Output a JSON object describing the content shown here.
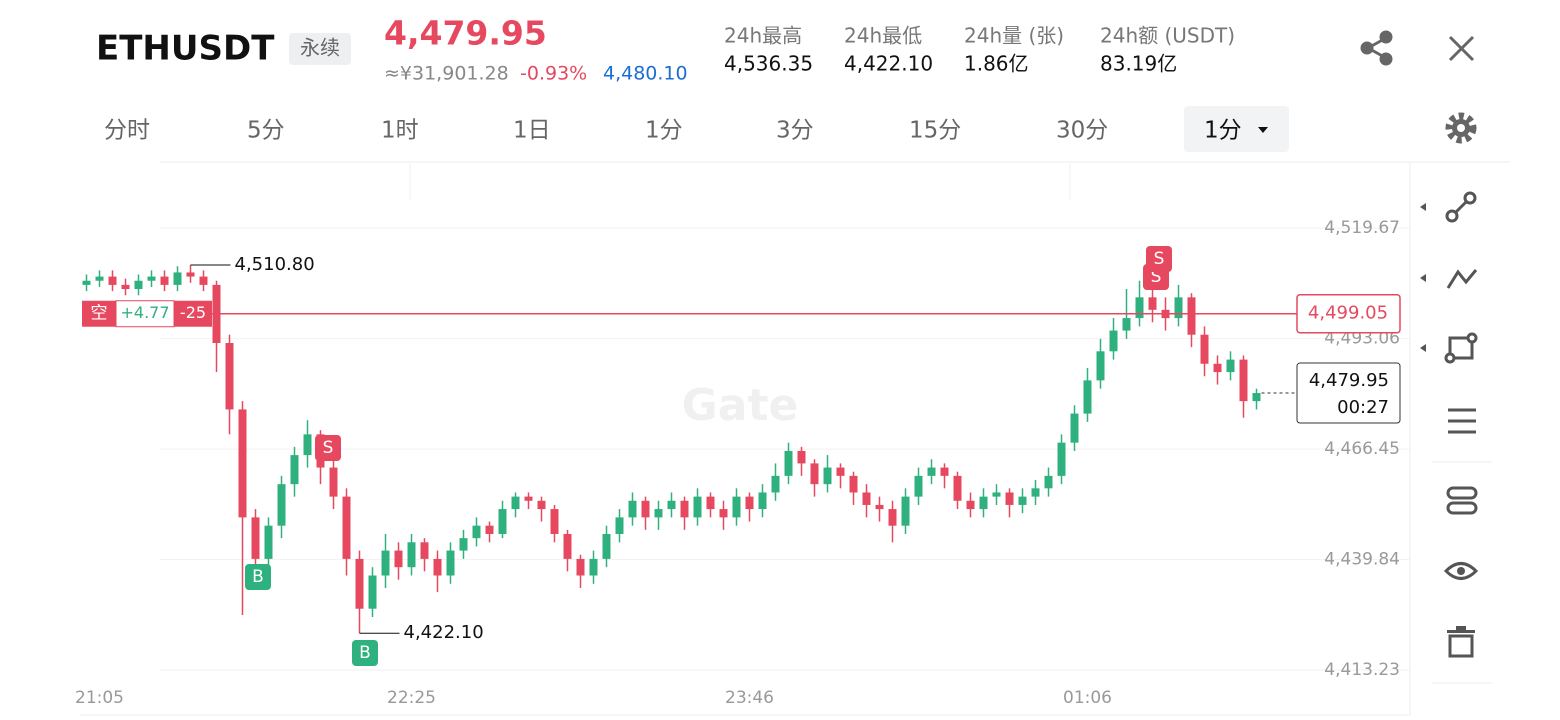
{
  "header": {
    "symbol": "ETHUSDT",
    "tag": "永续",
    "price": "4,479.95",
    "cny": "≈¥31,901.28",
    "change": "-0.93%",
    "mark_price": "4,480.10",
    "stats": [
      {
        "label": "24h最高",
        "value": "4,536.35"
      },
      {
        "label": "24h最低",
        "value": "4,422.10"
      },
      {
        "label": "24h量 (张)",
        "value": "1.86亿"
      },
      {
        "label": "24h额 (USDT)",
        "value": "83.19亿"
      }
    ]
  },
  "tabs": [
    "分时",
    "5分",
    "1时",
    "1日",
    "1分",
    "3分",
    "15分",
    "30分"
  ],
  "active_tab": "1分",
  "chart_data": {
    "type": "candlestick",
    "watermark": "Gate",
    "up_color": "#2fb07f",
    "down_color": "#e5485f",
    "categories": [
      null,
      "21:05",
      null,
      null,
      null,
      null,
      null,
      null,
      null,
      null,
      null,
      null,
      null,
      null,
      null,
      null,
      null,
      null,
      null,
      null,
      null,
      null,
      null,
      null,
      null,
      "22:25",
      null,
      null,
      null,
      null,
      null,
      null,
      null,
      null,
      null,
      null,
      null,
      null,
      null,
      null,
      null,
      null,
      null,
      null,
      null,
      null,
      null,
      null,
      null,
      null,
      null,
      "23:46",
      null,
      null,
      null,
      null,
      null,
      null,
      null,
      null,
      null,
      null,
      null,
      null,
      null,
      null,
      null,
      null,
      null,
      null,
      null,
      null,
      null,
      null,
      null,
      null,
      null,
      "01:06",
      null,
      null,
      null,
      null,
      null,
      null,
      null,
      null,
      null,
      null,
      null,
      null,
      null,
      null
    ],
    "candles": [
      [
        4506,
        4508.5,
        4504.5,
        4507
      ],
      [
        4507,
        4509.5,
        4505.5,
        4508
      ],
      [
        4508,
        4509.5,
        4504.5,
        4506
      ],
      [
        4506,
        4507.5,
        4503.5,
        4505
      ],
      [
        4505,
        4508.5,
        4503.5,
        4507
      ],
      [
        4507,
        4509.5,
        4505.5,
        4508
      ],
      [
        4508,
        4509.5,
        4504.5,
        4506
      ],
      [
        4506,
        4510.5,
        4504.5,
        4509
      ],
      [
        4509,
        4510.8,
        4506.5,
        4508
      ],
      [
        4508,
        4509.5,
        4504.5,
        4506
      ],
      [
        4506,
        4507,
        4485,
        4492
      ],
      [
        4492,
        4494,
        4470,
        4476
      ],
      [
        4476,
        4478,
        4426.5,
        4450
      ],
      [
        4450,
        4452,
        4434,
        4440
      ],
      [
        4440,
        4450,
        4436,
        4448
      ],
      [
        4448,
        4460,
        4445,
        4458
      ],
      [
        4458,
        4467,
        4455,
        4465
      ],
      [
        4465,
        4473.4,
        4462,
        4470
      ],
      [
        4470,
        4471,
        4458,
        4462
      ],
      [
        4462,
        4464,
        4452,
        4455
      ],
      [
        4455,
        4457,
        4436,
        4440
      ],
      [
        4440,
        4442,
        4422.1,
        4428
      ],
      [
        4428,
        4438,
        4426,
        4436
      ],
      [
        4436,
        4446,
        4433,
        4442
      ],
      [
        4442,
        4444,
        4435,
        4438
      ],
      [
        4438,
        4446,
        4436,
        4444
      ],
      [
        4444,
        4445,
        4437,
        4440
      ],
      [
        4440,
        4442,
        4432,
        4436
      ],
      [
        4436,
        4444,
        4434,
        4442
      ],
      [
        4442,
        4447,
        4440,
        4445
      ],
      [
        4445,
        4450,
        4443,
        4448
      ],
      [
        4448,
        4449,
        4444,
        4446
      ],
      [
        4446,
        4454,
        4445,
        4452
      ],
      [
        4452,
        4456,
        4450,
        4455
      ],
      [
        4455,
        4456,
        4452,
        4454
      ],
      [
        4454,
        4455,
        4449,
        4452
      ],
      [
        4452,
        4453,
        4444,
        4446
      ],
      [
        4446,
        4447,
        4437,
        4440
      ],
      [
        4440,
        4441,
        4433,
        4436
      ],
      [
        4436,
        4442,
        4434,
        4440
      ],
      [
        4440,
        4448,
        4438,
        4446
      ],
      [
        4446,
        4452,
        4444,
        4450
      ],
      [
        4450,
        4456,
        4448,
        4454
      ],
      [
        4454,
        4455,
        4447,
        4450
      ],
      [
        4450,
        4454,
        4447,
        4452
      ],
      [
        4452,
        4456,
        4450,
        4454
      ],
      [
        4454,
        4455,
        4447,
        4450
      ],
      [
        4450,
        4457,
        4448,
        4455
      ],
      [
        4455,
        4456,
        4450,
        4452
      ],
      [
        4452,
        4454,
        4447,
        4450
      ],
      [
        4450,
        4457,
        4448,
        4455
      ],
      [
        4455,
        4456,
        4449,
        4452
      ],
      [
        4452,
        4458,
        4450,
        4456
      ],
      [
        4456,
        4463,
        4454,
        4460
      ],
      [
        4460,
        4468,
        4458,
        4466
      ],
      [
        4466,
        4467,
        4460,
        4463
      ],
      [
        4463,
        4464,
        4455,
        4458
      ],
      [
        4458,
        4465,
        4456,
        4462
      ],
      [
        4462,
        4463,
        4457,
        4460
      ],
      [
        4460,
        4461,
        4453,
        4456
      ],
      [
        4456,
        4458,
        4450,
        4453
      ],
      [
        4453,
        4455,
        4449,
        4452
      ],
      [
        4452,
        4454,
        4444,
        4448
      ],
      [
        4448,
        4457,
        4446,
        4455
      ],
      [
        4455,
        4462,
        4453,
        4460
      ],
      [
        4460,
        4464,
        4458,
        4462
      ],
      [
        4462,
        4463,
        4457,
        4460
      ],
      [
        4460,
        4461,
        4452,
        4454
      ],
      [
        4454,
        4456,
        4450,
        4452
      ],
      [
        4452,
        4457,
        4450,
        4455
      ],
      [
        4455,
        4458,
        4453,
        4456
      ],
      [
        4456,
        4457,
        4450,
        4453
      ],
      [
        4453,
        4457,
        4451,
        4455
      ],
      [
        4455,
        4459,
        4453,
        4457
      ],
      [
        4457,
        4462,
        4455,
        4460
      ],
      [
        4460,
        4470,
        4458,
        4468
      ],
      [
        4468,
        4477,
        4466,
        4475
      ],
      [
        4475,
        4486,
        4473,
        4483
      ],
      [
        4483,
        4493,
        4481,
        4490
      ],
      [
        4490,
        4498,
        4488,
        4495
      ],
      [
        4495,
        4505,
        4493,
        4498
      ],
      [
        4498,
        4507,
        4496,
        4503
      ],
      [
        4503,
        4506,
        4497,
        4500
      ],
      [
        4500,
        4503,
        4495,
        4498
      ],
      [
        4498,
        4506,
        4496,
        4503
      ],
      [
        4503,
        4504,
        4491,
        4494
      ],
      [
        4494,
        4496,
        4484,
        4487
      ],
      [
        4487,
        4489,
        4482,
        4485
      ],
      [
        4485,
        4490,
        4483,
        4488
      ],
      [
        4488,
        4489,
        4474,
        4478
      ],
      [
        4478,
        4481,
        4476,
        4479.95
      ]
    ],
    "ylim": [
      4402.4,
      4535.6
    ],
    "yticks": [
      {
        "value": 4519.67,
        "label": "4,519.67"
      },
      {
        "value": 4493.06,
        "label": "4,493.06"
      },
      {
        "value": 4466.45,
        "label": "4,466.45"
      },
      {
        "value": 4439.84,
        "label": "4,439.84"
      },
      {
        "value": 4413.23,
        "label": "4,413.23"
      }
    ],
    "grid": true,
    "high_label": {
      "value": 4510.8,
      "label": "4,510.80"
    },
    "low_label": {
      "value": 4422.1,
      "label": "4,422.10"
    },
    "position_line": {
      "value": 4499.05,
      "label": "4,499.05",
      "side": "空",
      "pnl": "+4.77",
      "qty": "-25"
    },
    "last_price": {
      "value": 4479.95,
      "label": "4,479.95",
      "countdown": "00:27"
    },
    "trade_markers": [
      "S",
      "B",
      "B",
      "S",
      "S"
    ]
  }
}
